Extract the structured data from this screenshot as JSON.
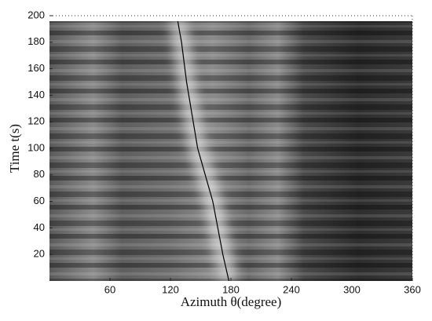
{
  "chart_data": {
    "type": "line",
    "xlabel": "Azimuth θ(degree)",
    "ylabel": "Time t(s)",
    "xlim": [
      0,
      360
    ],
    "xticks": [
      60,
      120,
      180,
      240,
      300,
      360
    ],
    "ylim": [
      0,
      200
    ],
    "yticks": [
      20,
      40,
      60,
      80,
      100,
      120,
      140,
      160,
      180,
      200
    ],
    "series": [
      {
        "color": "#000000",
        "x": [
          178,
          172,
          162,
          147,
          136,
          131,
          127
        ],
        "values": [
          0,
          20,
          60,
          100,
          150,
          180,
          197
        ]
      }
    ]
  }
}
